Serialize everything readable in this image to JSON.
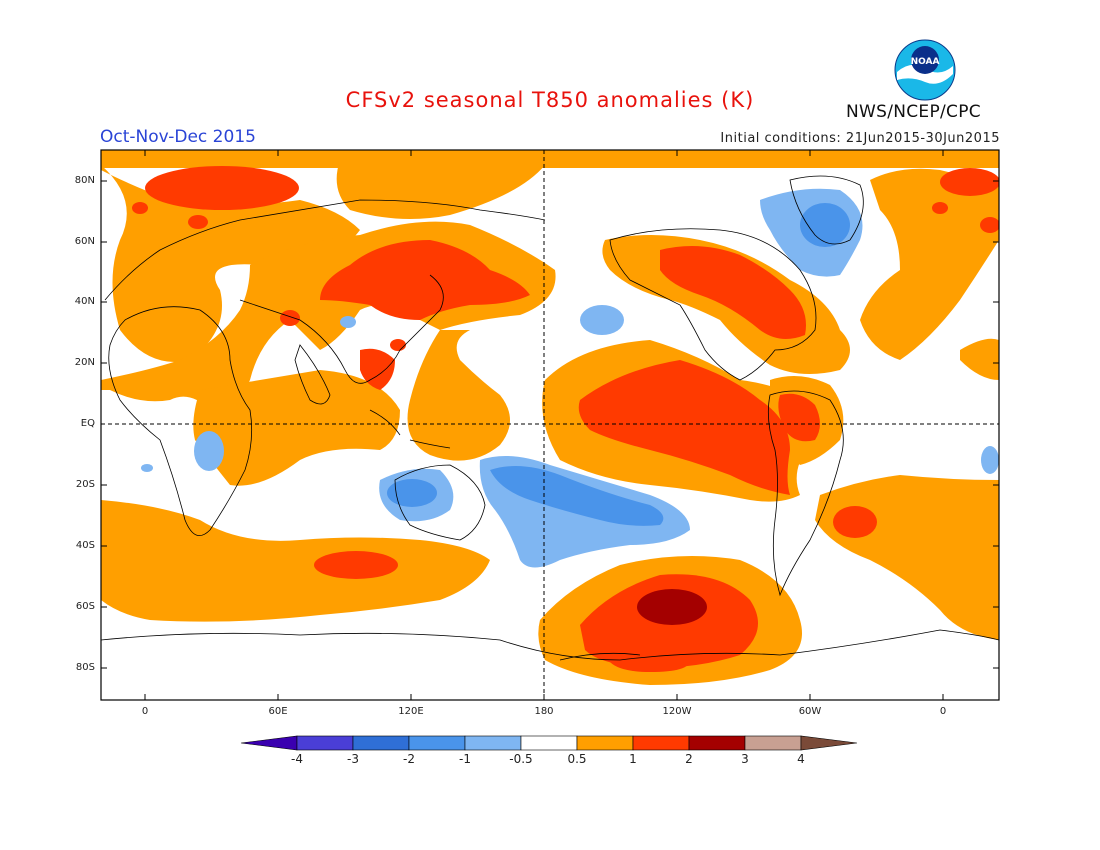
{
  "title": "CFSv2 seasonal T850 anomalies (K)",
  "season": "Oct-Nov-Dec 2015",
  "initial_conditions": "Initial conditions: 21Jun2015-30Jun2015",
  "agency": "NWS/NCEP/CPC",
  "logo_text": "NOAA",
  "lat_labels": [
    "80N",
    "60N",
    "40N",
    "20N",
    "EQ",
    "20S",
    "40S",
    "60S",
    "80S"
  ],
  "lon_labels": [
    "0",
    "60E",
    "120E",
    "180",
    "120W",
    "60W",
    "0"
  ],
  "colorbar": {
    "labels": [
      "-4",
      "-3",
      "-2",
      "-1",
      "-0.5",
      "0.5",
      "1",
      "2",
      "3",
      "4"
    ],
    "colors": [
      "#3a00b0",
      "#4a3ed6",
      "#2f6fd6",
      "#4a94ea",
      "#7fb6f2",
      "#ffffff",
      "#ff9f00",
      "#ff3a00",
      "#a40000",
      "#c8a092",
      "#7a4a38"
    ]
  },
  "colors": {
    "warm1": "#ff9f00",
    "warm2": "#ff3a00",
    "warm3": "#a40000",
    "cool1": "#7fb6f2",
    "cool2": "#4a94ea"
  }
}
